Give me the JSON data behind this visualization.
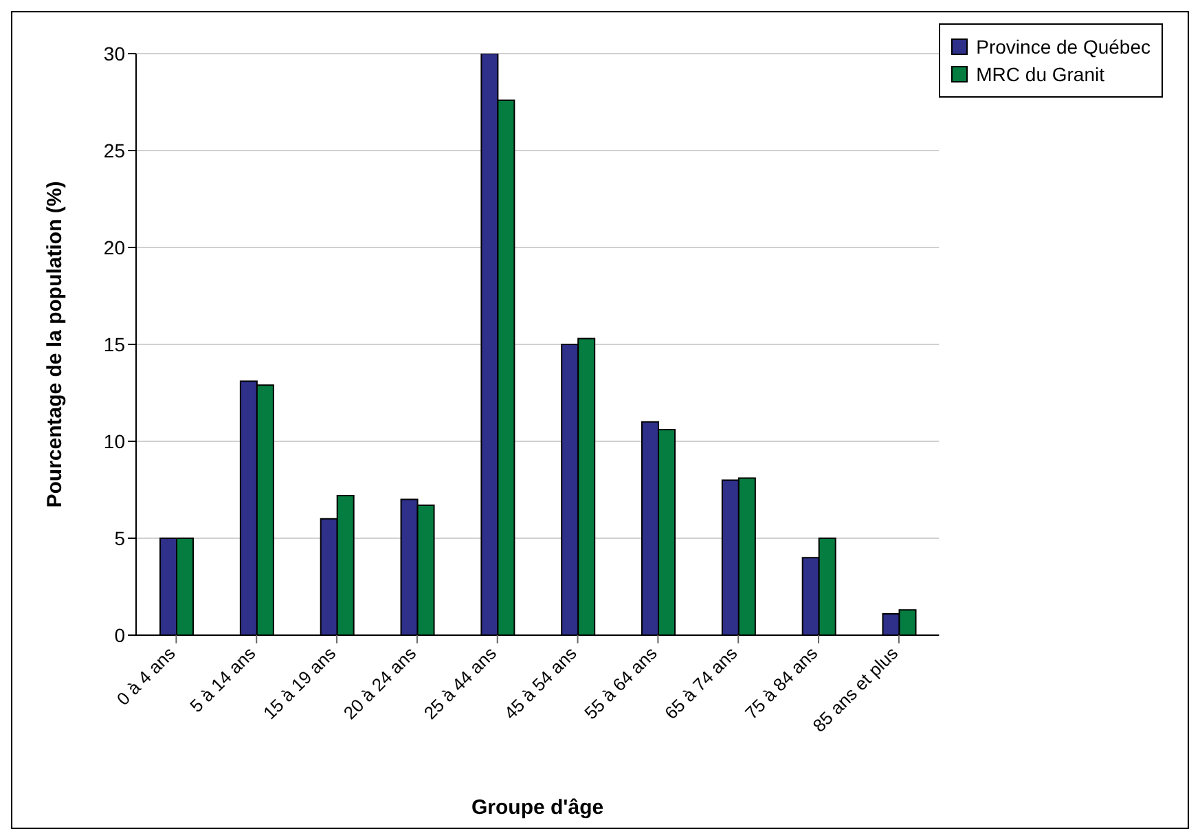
{
  "chart_data": {
    "type": "bar",
    "xlabel": "Groupe d'âge",
    "ylabel": "Pourcentage de la population (%)",
    "categories": [
      "0 à 4 ans",
      "5 à 14 ans",
      "15 à 19 ans",
      "20 à 24 ans",
      "25 à 44 ans",
      "45 à 54 ans",
      "55 à 64 ans",
      "65 à 74 ans",
      "75 à 84 ans",
      "85 ans et plus"
    ],
    "series": [
      {
        "name": "Province de Québec",
        "color": "#2e3089",
        "values": [
          5.0,
          13.1,
          6.0,
          7.0,
          30.0,
          15.0,
          11.0,
          8.0,
          4.0,
          1.1
        ]
      },
      {
        "name": "MRC du Granit",
        "color": "#067d40",
        "values": [
          5.0,
          12.9,
          7.2,
          6.7,
          27.6,
          15.3,
          10.6,
          8.1,
          5.0,
          1.3
        ]
      }
    ],
    "ylim": [
      0,
      30
    ],
    "yticks": [
      0,
      5,
      10,
      15,
      20,
      25,
      30
    ],
    "grid": "y",
    "legend": "top right"
  }
}
